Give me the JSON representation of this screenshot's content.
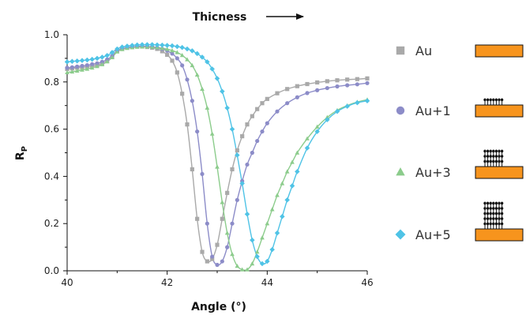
{
  "chart_data": {
    "type": "scatter",
    "title": "",
    "annotation": "Thicness",
    "xlabel": "Angle (°)",
    "ylabel": "R",
    "ylabel_sub": "P",
    "xlim": [
      40,
      46
    ],
    "ylim": [
      0,
      1.0
    ],
    "x_ticks": [
      40,
      42,
      44,
      46
    ],
    "y_ticks": [
      0.0,
      0.2,
      0.4,
      0.6,
      0.8,
      1.0
    ],
    "y_tick_labels": [
      "0.0",
      "0.2",
      "0.4",
      "0.6",
      "0.8",
      "1.0"
    ],
    "grid": false,
    "legend_position": "right",
    "series": [
      {
        "name": "Au",
        "marker": "square",
        "color": "#a9a9a9",
        "line_color": "#a9a9a9",
        "layers": 0,
        "points": [
          [
            40.0,
            0.855
          ],
          [
            40.1,
            0.857
          ],
          [
            40.2,
            0.86
          ],
          [
            40.3,
            0.862
          ],
          [
            40.4,
            0.865
          ],
          [
            40.5,
            0.868
          ],
          [
            40.6,
            0.872
          ],
          [
            40.7,
            0.878
          ],
          [
            40.8,
            0.888
          ],
          [
            40.9,
            0.905
          ],
          [
            41.0,
            0.93
          ],
          [
            41.1,
            0.94
          ],
          [
            41.2,
            0.945
          ],
          [
            41.3,
            0.948
          ],
          [
            41.4,
            0.95
          ],
          [
            41.5,
            0.95
          ],
          [
            41.6,
            0.948
          ],
          [
            41.7,
            0.945
          ],
          [
            41.8,
            0.94
          ],
          [
            41.9,
            0.93
          ],
          [
            42.0,
            0.915
          ],
          [
            42.1,
            0.89
          ],
          [
            42.2,
            0.84
          ],
          [
            42.3,
            0.75
          ],
          [
            42.4,
            0.62
          ],
          [
            42.5,
            0.43
          ],
          [
            42.6,
            0.22
          ],
          [
            42.7,
            0.08
          ],
          [
            42.8,
            0.04
          ],
          [
            42.9,
            0.05
          ],
          [
            43.0,
            0.11
          ],
          [
            43.1,
            0.22
          ],
          [
            43.2,
            0.33
          ],
          [
            43.3,
            0.43
          ],
          [
            43.4,
            0.51
          ],
          [
            43.5,
            0.57
          ],
          [
            43.6,
            0.62
          ],
          [
            43.7,
            0.655
          ],
          [
            43.8,
            0.685
          ],
          [
            43.9,
            0.71
          ],
          [
            44.0,
            0.728
          ],
          [
            44.2,
            0.752
          ],
          [
            44.4,
            0.77
          ],
          [
            44.6,
            0.782
          ],
          [
            44.8,
            0.791
          ],
          [
            45.0,
            0.798
          ],
          [
            45.2,
            0.803
          ],
          [
            45.4,
            0.807
          ],
          [
            45.6,
            0.81
          ],
          [
            45.8,
            0.812
          ],
          [
            46.0,
            0.815
          ]
        ]
      },
      {
        "name": "Au+1",
        "marker": "circle",
        "color": "#8c8cc8",
        "line_color": "#8c8cc8",
        "layers": 1,
        "points": [
          [
            40.0,
            0.86
          ],
          [
            40.1,
            0.862
          ],
          [
            40.2,
            0.865
          ],
          [
            40.3,
            0.868
          ],
          [
            40.4,
            0.871
          ],
          [
            40.5,
            0.875
          ],
          [
            40.6,
            0.879
          ],
          [
            40.7,
            0.885
          ],
          [
            40.8,
            0.895
          ],
          [
            40.9,
            0.91
          ],
          [
            41.0,
            0.932
          ],
          [
            41.1,
            0.94
          ],
          [
            41.2,
            0.945
          ],
          [
            41.3,
            0.948
          ],
          [
            41.4,
            0.95
          ],
          [
            41.5,
            0.951
          ],
          [
            41.6,
            0.95
          ],
          [
            41.7,
            0.948
          ],
          [
            41.8,
            0.945
          ],
          [
            41.9,
            0.94
          ],
          [
            42.0,
            0.932
          ],
          [
            42.1,
            0.92
          ],
          [
            42.2,
            0.9
          ],
          [
            42.3,
            0.87
          ],
          [
            42.4,
            0.81
          ],
          [
            42.5,
            0.72
          ],
          [
            42.6,
            0.59
          ],
          [
            42.7,
            0.41
          ],
          [
            42.8,
            0.2
          ],
          [
            42.9,
            0.06
          ],
          [
            43.0,
            0.025
          ],
          [
            43.1,
            0.04
          ],
          [
            43.2,
            0.1
          ],
          [
            43.3,
            0.2
          ],
          [
            43.4,
            0.3
          ],
          [
            43.5,
            0.38
          ],
          [
            43.6,
            0.45
          ],
          [
            43.7,
            0.5
          ],
          [
            43.8,
            0.55
          ],
          [
            43.9,
            0.59
          ],
          [
            44.0,
            0.625
          ],
          [
            44.2,
            0.675
          ],
          [
            44.4,
            0.71
          ],
          [
            44.6,
            0.735
          ],
          [
            44.8,
            0.753
          ],
          [
            45.0,
            0.765
          ],
          [
            45.2,
            0.774
          ],
          [
            45.4,
            0.781
          ],
          [
            45.6,
            0.786
          ],
          [
            45.8,
            0.79
          ],
          [
            46.0,
            0.795
          ]
        ]
      },
      {
        "name": "Au+3",
        "marker": "triangle",
        "color": "#8ccc8c",
        "line_color": "#8ccc8c",
        "layers": 3,
        "points": [
          [
            40.0,
            0.84
          ],
          [
            40.1,
            0.843
          ],
          [
            40.2,
            0.847
          ],
          [
            40.3,
            0.851
          ],
          [
            40.4,
            0.855
          ],
          [
            40.5,
            0.86
          ],
          [
            40.6,
            0.866
          ],
          [
            40.7,
            0.874
          ],
          [
            40.8,
            0.886
          ],
          [
            40.9,
            0.904
          ],
          [
            41.0,
            0.928
          ],
          [
            41.1,
            0.938
          ],
          [
            41.2,
            0.943
          ],
          [
            41.3,
            0.946
          ],
          [
            41.4,
            0.948
          ],
          [
            41.5,
            0.949
          ],
          [
            41.6,
            0.949
          ],
          [
            41.7,
            0.948
          ],
          [
            41.8,
            0.946
          ],
          [
            41.9,
            0.943
          ],
          [
            42.0,
            0.939
          ],
          [
            42.1,
            0.933
          ],
          [
            42.2,
            0.925
          ],
          [
            42.3,
            0.913
          ],
          [
            42.4,
            0.895
          ],
          [
            42.5,
            0.87
          ],
          [
            42.6,
            0.83
          ],
          [
            42.7,
            0.77
          ],
          [
            42.8,
            0.69
          ],
          [
            42.9,
            0.58
          ],
          [
            43.0,
            0.44
          ],
          [
            43.1,
            0.29
          ],
          [
            43.2,
            0.16
          ],
          [
            43.3,
            0.07
          ],
          [
            43.4,
            0.02
          ],
          [
            43.5,
            0.005
          ],
          [
            43.6,
            0.005
          ],
          [
            43.7,
            0.03
          ],
          [
            43.8,
            0.08
          ],
          [
            43.9,
            0.14
          ],
          [
            44.0,
            0.2
          ],
          [
            44.1,
            0.26
          ],
          [
            44.2,
            0.32
          ],
          [
            44.3,
            0.37
          ],
          [
            44.4,
            0.42
          ],
          [
            44.5,
            0.46
          ],
          [
            44.6,
            0.5
          ],
          [
            44.8,
            0.56
          ],
          [
            45.0,
            0.61
          ],
          [
            45.2,
            0.65
          ],
          [
            45.4,
            0.68
          ],
          [
            45.6,
            0.7
          ],
          [
            45.8,
            0.715
          ],
          [
            46.0,
            0.725
          ]
        ]
      },
      {
        "name": "Au+5",
        "marker": "diamond",
        "color": "#4fc3e6",
        "line_color": "#4fc3e6",
        "layers": 5,
        "points": [
          [
            40.0,
            0.885
          ],
          [
            40.1,
            0.887
          ],
          [
            40.2,
            0.889
          ],
          [
            40.3,
            0.891
          ],
          [
            40.4,
            0.893
          ],
          [
            40.5,
            0.896
          ],
          [
            40.6,
            0.9
          ],
          [
            40.7,
            0.905
          ],
          [
            40.8,
            0.912
          ],
          [
            40.9,
            0.925
          ],
          [
            41.0,
            0.94
          ],
          [
            41.1,
            0.948
          ],
          [
            41.2,
            0.952
          ],
          [
            41.3,
            0.955
          ],
          [
            41.4,
            0.957
          ],
          [
            41.5,
            0.958
          ],
          [
            41.6,
            0.958
          ],
          [
            41.7,
            0.958
          ],
          [
            41.8,
            0.957
          ],
          [
            41.9,
            0.956
          ],
          [
            42.0,
            0.955
          ],
          [
            42.1,
            0.953
          ],
          [
            42.2,
            0.95
          ],
          [
            42.3,
            0.946
          ],
          [
            42.4,
            0.94
          ],
          [
            42.5,
            0.932
          ],
          [
            42.6,
            0.92
          ],
          [
            42.7,
            0.905
          ],
          [
            42.8,
            0.885
          ],
          [
            42.9,
            0.855
          ],
          [
            43.0,
            0.815
          ],
          [
            43.1,
            0.76
          ],
          [
            43.2,
            0.69
          ],
          [
            43.3,
            0.6
          ],
          [
            43.4,
            0.49
          ],
          [
            43.5,
            0.37
          ],
          [
            43.6,
            0.24
          ],
          [
            43.7,
            0.13
          ],
          [
            43.8,
            0.06
          ],
          [
            43.9,
            0.03
          ],
          [
            44.0,
            0.04
          ],
          [
            44.1,
            0.09
          ],
          [
            44.2,
            0.16
          ],
          [
            44.3,
            0.23
          ],
          [
            44.4,
            0.3
          ],
          [
            44.5,
            0.36
          ],
          [
            44.6,
            0.42
          ],
          [
            44.8,
            0.52
          ],
          [
            45.0,
            0.59
          ],
          [
            45.2,
            0.64
          ],
          [
            45.4,
            0.675
          ],
          [
            45.6,
            0.697
          ],
          [
            45.8,
            0.712
          ],
          [
            46.0,
            0.72
          ]
        ]
      }
    ]
  }
}
